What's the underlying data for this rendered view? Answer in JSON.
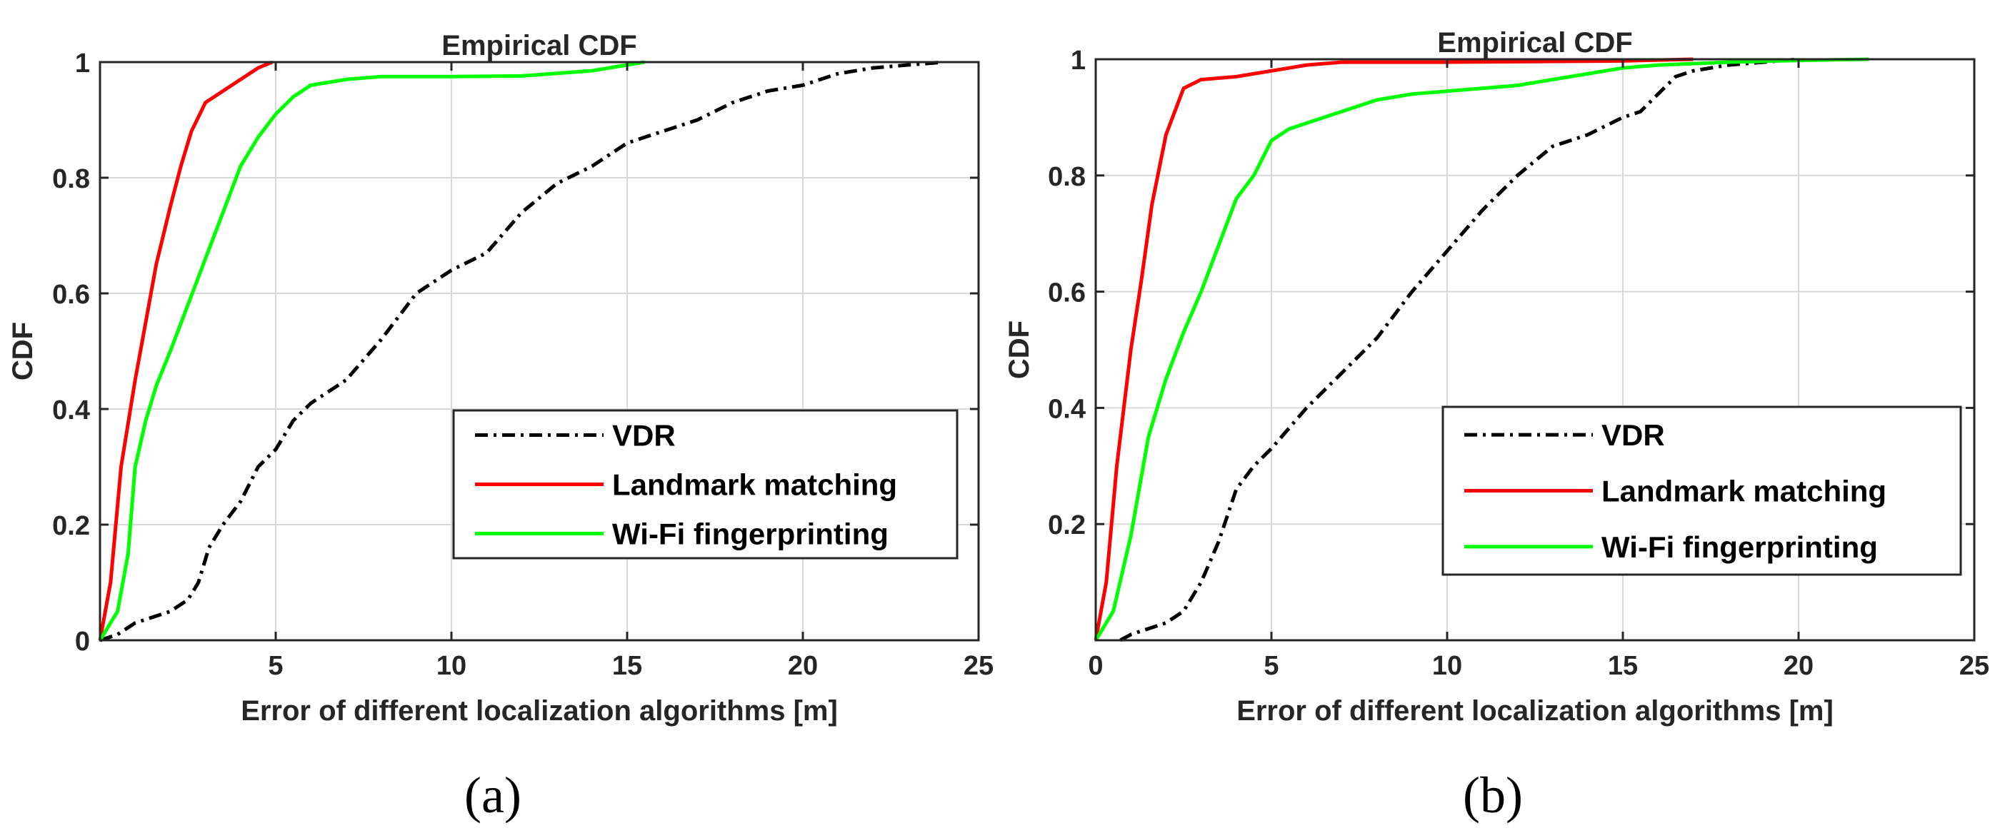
{
  "colors": {
    "vdr": "#000000",
    "landmark": "#ff0000",
    "wifi": "#00ff00",
    "grid": "#d9d9d9",
    "axis": "#262626"
  },
  "chart_data": [
    {
      "type": "line",
      "panel_label": "(a)",
      "title": "Empirical CDF",
      "xlabel": "Error of different localization algorithms [m]",
      "ylabel": "CDF",
      "xlim": [
        0,
        25
      ],
      "ylim": [
        0,
        1
      ],
      "xticks": [
        5,
        10,
        15,
        20,
        25
      ],
      "xtick_labels": [
        "5",
        "10",
        "15",
        "20",
        "25"
      ],
      "yticks": [
        0,
        0.2,
        0.4,
        0.6,
        0.8,
        1
      ],
      "ytick_labels": [
        "0",
        "0.2",
        "0.4",
        "0.6",
        "0.8",
        "1"
      ],
      "grid": true,
      "legend_position": "lower-right",
      "series": [
        {
          "name": "VDR",
          "style": "dashdot",
          "color_key": "vdr",
          "x": [
            0,
            0.5,
            1,
            1.5,
            2,
            2.5,
            2.8,
            3.1,
            3.5,
            4,
            4.5,
            5,
            5.5,
            6,
            7,
            8,
            9,
            10,
            11,
            12,
            13,
            14,
            15,
            16,
            17,
            18,
            19,
            20,
            21,
            22,
            23,
            24
          ],
          "y": [
            0,
            0.01,
            0.03,
            0.04,
            0.05,
            0.07,
            0.1,
            0.16,
            0.2,
            0.24,
            0.3,
            0.33,
            0.38,
            0.41,
            0.45,
            0.52,
            0.6,
            0.64,
            0.67,
            0.74,
            0.79,
            0.82,
            0.86,
            0.88,
            0.9,
            0.93,
            0.95,
            0.96,
            0.98,
            0.99,
            0.995,
            1
          ]
        },
        {
          "name": "Landmark matching",
          "style": "solid",
          "color_key": "landmark",
          "x": [
            0,
            0.3,
            0.6,
            1,
            1.3,
            1.6,
            2,
            2.3,
            2.6,
            3,
            3.5,
            4,
            4.5,
            4.9
          ],
          "y": [
            0,
            0.1,
            0.3,
            0.45,
            0.55,
            0.65,
            0.75,
            0.82,
            0.88,
            0.93,
            0.95,
            0.97,
            0.99,
            1
          ]
        },
        {
          "name": "Wi-Fi fingerprinting",
          "style": "solid",
          "color_key": "wifi",
          "x": [
            0,
            0.5,
            0.8,
            1,
            1.3,
            1.6,
            2,
            2.5,
            3,
            3.5,
            4,
            4.5,
            5,
            5.5,
            6,
            7,
            8,
            10,
            12,
            14,
            15,
            15.5
          ],
          "y": [
            0,
            0.05,
            0.15,
            0.3,
            0.38,
            0.44,
            0.5,
            0.58,
            0.66,
            0.74,
            0.82,
            0.87,
            0.91,
            0.94,
            0.96,
            0.97,
            0.975,
            0.975,
            0.976,
            0.985,
            0.995,
            1
          ]
        }
      ]
    },
    {
      "type": "line",
      "panel_label": "(b)",
      "title": "Empirical CDF",
      "xlabel": "Error of different localization algorithms [m]",
      "ylabel": "CDF",
      "xlim": [
        0,
        25
      ],
      "ylim": [
        0,
        1
      ],
      "xticks": [
        0,
        5,
        10,
        15,
        20,
        25
      ],
      "xtick_labels": [
        "0",
        "5",
        "10",
        "15",
        "20",
        "25"
      ],
      "yticks": [
        0.2,
        0.4,
        0.6,
        0.8,
        1
      ],
      "ytick_labels": [
        "0.2",
        "0.4",
        "0.6",
        "0.8",
        "1"
      ],
      "grid": true,
      "legend_position": "lower-right",
      "series": [
        {
          "name": "VDR",
          "style": "dashdot",
          "color_key": "vdr",
          "x": [
            0.7,
            1,
            1.5,
            2,
            2.5,
            3,
            3.5,
            4,
            4.5,
            5,
            6,
            7,
            8,
            9,
            10,
            11,
            12,
            13,
            14,
            15,
            15.5,
            16,
            16.5,
            17,
            18,
            19,
            20
          ],
          "y": [
            0,
            0.01,
            0.02,
            0.03,
            0.05,
            0.1,
            0.17,
            0.26,
            0.3,
            0.33,
            0.4,
            0.46,
            0.52,
            0.6,
            0.67,
            0.74,
            0.8,
            0.85,
            0.87,
            0.9,
            0.91,
            0.94,
            0.97,
            0.98,
            0.99,
            0.995,
            1
          ]
        },
        {
          "name": "Landmark matching",
          "style": "solid",
          "color_key": "landmark",
          "x": [
            0,
            0.3,
            0.6,
            1,
            1.3,
            1.6,
            2,
            2.5,
            3,
            4,
            5,
            6,
            7,
            10,
            15,
            17
          ],
          "y": [
            0,
            0.1,
            0.3,
            0.5,
            0.62,
            0.75,
            0.87,
            0.95,
            0.965,
            0.97,
            0.98,
            0.99,
            0.995,
            0.995,
            0.997,
            1
          ]
        },
        {
          "name": "Wi-Fi fingerprinting",
          "style": "solid",
          "color_key": "wifi",
          "x": [
            0,
            0.5,
            1,
            1.5,
            2,
            2.5,
            3,
            3.5,
            4,
            4.5,
            5,
            5.5,
            6,
            7,
            8,
            9,
            10,
            12,
            14,
            15,
            16,
            18,
            20,
            22
          ],
          "y": [
            0,
            0.05,
            0.18,
            0.35,
            0.45,
            0.53,
            0.6,
            0.68,
            0.76,
            0.8,
            0.86,
            0.88,
            0.89,
            0.91,
            0.93,
            0.94,
            0.945,
            0.955,
            0.975,
            0.985,
            0.99,
            0.995,
            0.998,
            1
          ]
        }
      ]
    }
  ]
}
